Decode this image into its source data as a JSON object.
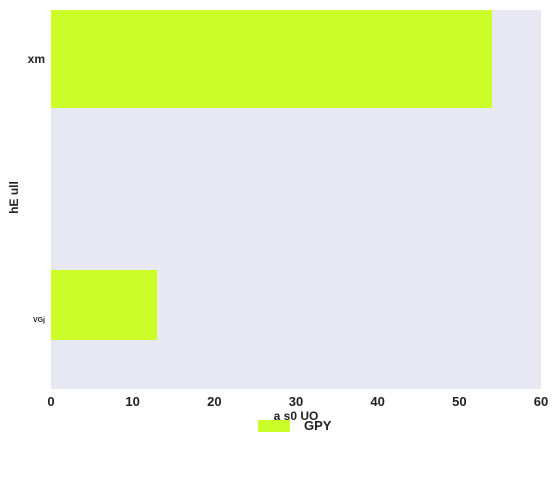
{
  "chart_data": {
    "type": "bar",
    "orientation": "horizontal",
    "categories": [
      "xm",
      "VGj"
    ],
    "series": [
      {
        "name": "GPY",
        "values": [
          54,
          13
        ],
        "color": "#ccff2a"
      }
    ],
    "xlabel": "a s0 UO",
    "ylabel": "hE ull",
    "xlim": [
      0,
      60
    ],
    "xticks": [
      0,
      10,
      20,
      30,
      40,
      50,
      60
    ],
    "grid": false,
    "legend_position": "bottom-center",
    "background": "#e8e8f2"
  }
}
